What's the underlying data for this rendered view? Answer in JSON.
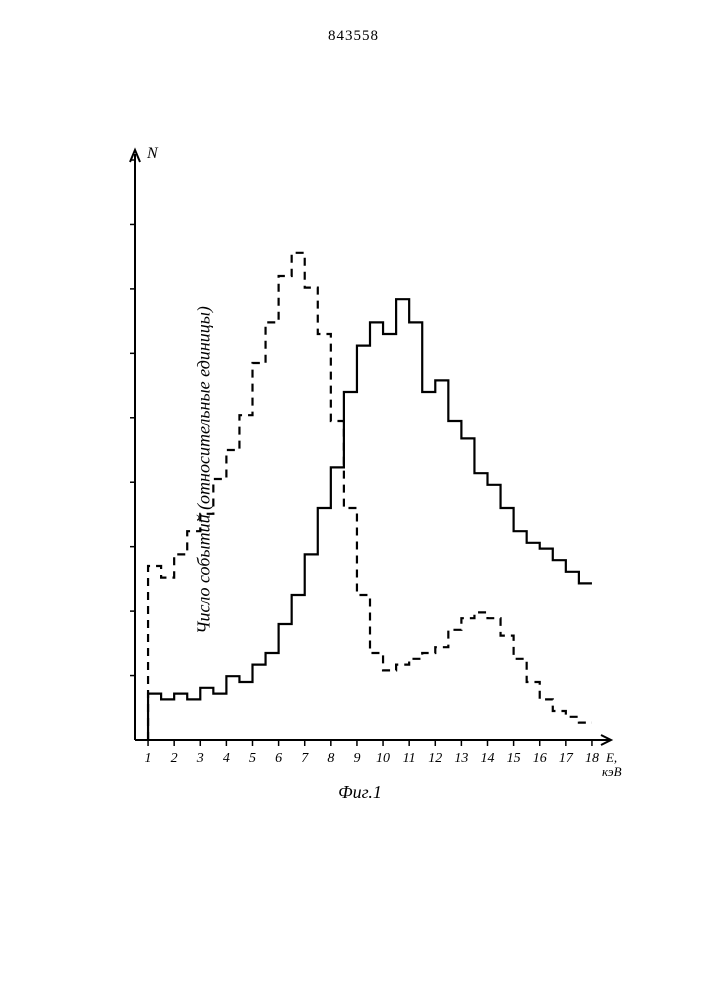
{
  "document": {
    "number": "843558"
  },
  "chart": {
    "type": "step-histogram",
    "y_axis_letter": "N",
    "y_label": "Число событий (относительные единицы)",
    "x_label_unit": "E, кэВ",
    "figure_caption": "Фиг.1",
    "xlim": [
      0.5,
      18.5
    ],
    "ylim": [
      0,
      100
    ],
    "x_ticks": [
      1,
      2,
      3,
      4,
      5,
      6,
      7,
      8,
      9,
      10,
      11,
      12,
      13,
      14,
      15,
      16,
      17,
      18
    ],
    "y_tick_count": 9,
    "colors": {
      "background": "#ffffff",
      "axis": "#000000",
      "series_solid": "#000000",
      "series_dashed": "#000000",
      "text": "#000000"
    },
    "stroke_width": 2.2,
    "dash_pattern": "8 6",
    "bin_width": 0.5,
    "series_solid": {
      "name": "solid-histogram",
      "bins_start": 1.0,
      "values": [
        8,
        7,
        8,
        7,
        9,
        8,
        11,
        10,
        13,
        15,
        20,
        25,
        32,
        40,
        47,
        60,
        68,
        72,
        70,
        76,
        72,
        60,
        62,
        55,
        52,
        46,
        44,
        40,
        36,
        34,
        33,
        31,
        29,
        27
      ]
    },
    "series_dashed": {
      "name": "dashed-histogram",
      "bins_start": 1.0,
      "values": [
        30,
        28,
        32,
        36,
        39,
        45,
        50,
        56,
        65,
        72,
        80,
        84,
        78,
        70,
        55,
        40,
        25,
        15,
        12,
        13,
        14,
        15,
        16,
        19,
        21,
        22,
        21,
        18,
        14,
        10,
        7,
        5,
        4,
        3
      ]
    },
    "fontsize_ticks": 14,
    "fontsize_caption": 18,
    "fontsize_ylabel": 18,
    "fontsize_yletter": 16
  }
}
